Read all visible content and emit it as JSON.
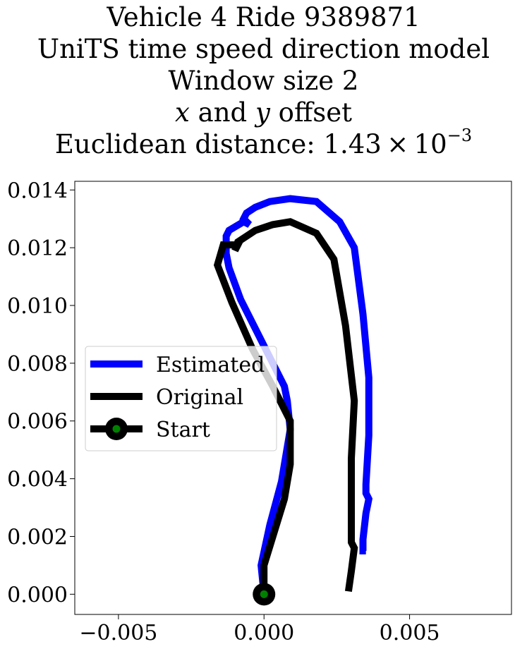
{
  "title": {
    "line1": "Vehicle 4 Ride 9389871",
    "line2": "UniTS time speed direction model",
    "line3": "Window size 2",
    "line4_pre": "x",
    "line4_mid": " and ",
    "line4_var2": "y",
    "line4_post": " offset",
    "line5_pre": "Euclidean distance: 1.43 × 10",
    "line5_exp": "−3"
  },
  "colors": {
    "estimated": "#0000ff",
    "original": "#000000",
    "start_fill": "#008000"
  },
  "chart_data": {
    "type": "line",
    "xlim": [
      -0.0065,
      0.0085
    ],
    "ylim": [
      -0.0007,
      0.0143
    ],
    "xticks": [
      -0.005,
      0.0,
      0.005
    ],
    "xtick_labels": [
      "−0.005",
      "0.000",
      "0.005"
    ],
    "yticks": [
      0.0,
      0.002,
      0.004,
      0.006,
      0.008,
      0.01,
      0.012,
      0.014
    ],
    "ytick_labels": [
      "0.000",
      "0.002",
      "0.004",
      "0.006",
      "0.008",
      "0.010",
      "0.012",
      "0.014"
    ],
    "grid": false,
    "legend_position": "center-left",
    "series": [
      {
        "name": "Estimated",
        "x": [
          0.0,
          -0.0001,
          0.0002,
          0.0006,
          0.0009,
          0.0008,
          0.0007,
          0.0,
          -0.0008,
          -0.0012,
          -0.0013,
          -0.0013,
          -0.0012,
          -0.0007,
          -0.0005,
          -0.0007,
          -0.0006,
          -0.0003,
          0.0002,
          0.0009,
          0.0018,
          0.0026,
          0.0031,
          0.0034,
          0.0036,
          0.0036,
          0.0035,
          0.0035,
          0.0036,
          0.0035,
          0.0034,
          0.0034,
          0.0035
        ],
        "y": [
          0.0,
          0.001,
          0.0024,
          0.0039,
          0.0057,
          0.0067,
          0.0072,
          0.0086,
          0.0102,
          0.0113,
          0.0118,
          0.0124,
          0.0126,
          0.0129,
          0.0128,
          0.013,
          0.0132,
          0.0134,
          0.0136,
          0.0137,
          0.0136,
          0.0129,
          0.012,
          0.0097,
          0.0075,
          0.0055,
          0.0038,
          0.0035,
          0.0033,
          0.0028,
          0.0019,
          0.0015,
          0.0015
        ]
      },
      {
        "name": "Original",
        "x": [
          0.0,
          0.0,
          0.0007,
          0.0009,
          0.0009,
          0.0003,
          -0.0004,
          -0.0011,
          -0.0016,
          -0.0014,
          -0.0009,
          -0.001,
          -0.0009,
          -0.0003,
          0.0003,
          0.0009,
          0.0018,
          0.0024,
          0.0028,
          0.0031,
          0.003,
          0.003,
          0.003,
          0.0031,
          0.003,
          0.0029
        ],
        "y": [
          0.0,
          0.001,
          0.0033,
          0.0045,
          0.006,
          0.0072,
          0.0085,
          0.0101,
          0.0114,
          0.0121,
          0.0121,
          0.0119,
          0.0122,
          0.0126,
          0.0128,
          0.0129,
          0.0125,
          0.0116,
          0.0093,
          0.0067,
          0.0047,
          0.0031,
          0.0018,
          0.0016,
          0.0008,
          0.0001
        ]
      }
    ],
    "start_point": {
      "name": "Start",
      "x": 0.0,
      "y": 0.0
    }
  }
}
